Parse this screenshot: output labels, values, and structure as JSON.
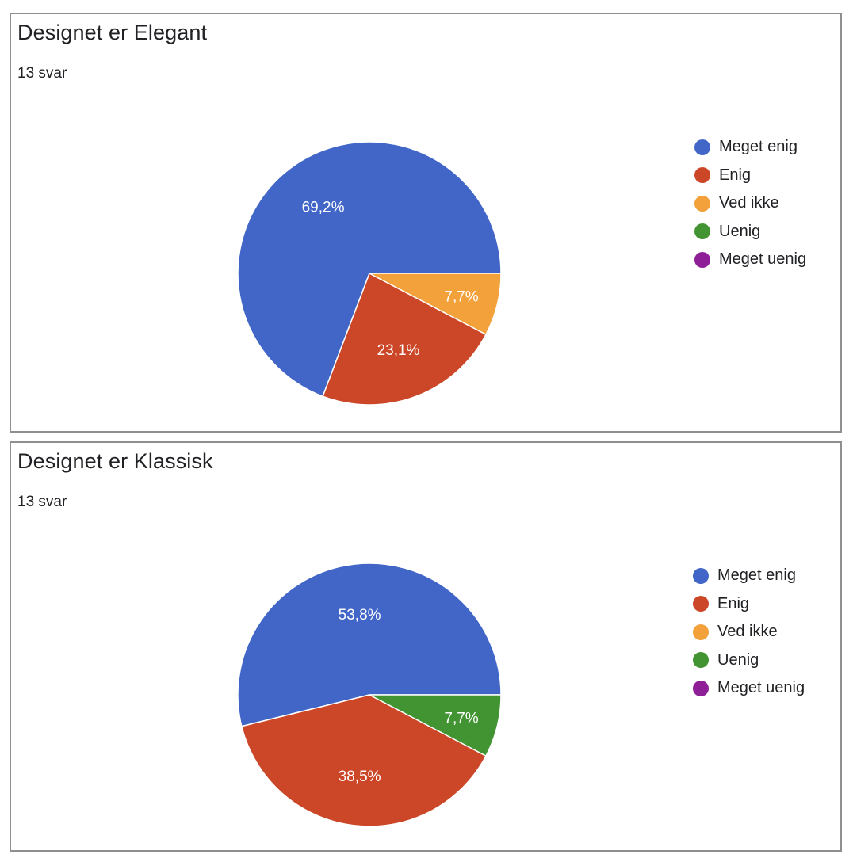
{
  "chart_data": [
    {
      "type": "pie",
      "title": "Designet er Elegant",
      "subtitle": "13 svar",
      "categories": [
        "Meget enig",
        "Enig",
        "Ved ikke",
        "Uenig",
        "Meget uenig"
      ],
      "values": [
        9,
        3,
        1,
        0,
        0
      ],
      "labels": [
        "69,2%",
        "23,1%",
        "7,7%",
        "",
        ""
      ],
      "colors": [
        "#4166c8",
        "#cc4628",
        "#f3a13a",
        "#419431",
        "#8e1f97"
      ],
      "legend_position": "right"
    },
    {
      "type": "pie",
      "title": "Designet er Klassisk",
      "subtitle": "13 svar",
      "categories": [
        "Meget enig",
        "Enig",
        "Ved ikke",
        "Uenig",
        "Meget uenig"
      ],
      "values": [
        7,
        5,
        0,
        1,
        0
      ],
      "labels": [
        "53,8%",
        "38,5%",
        "",
        "7,7%",
        ""
      ],
      "colors": [
        "#4166c8",
        "#cc4628",
        "#f3a13a",
        "#419431",
        "#8e1f97"
      ],
      "legend_position": "right"
    }
  ]
}
